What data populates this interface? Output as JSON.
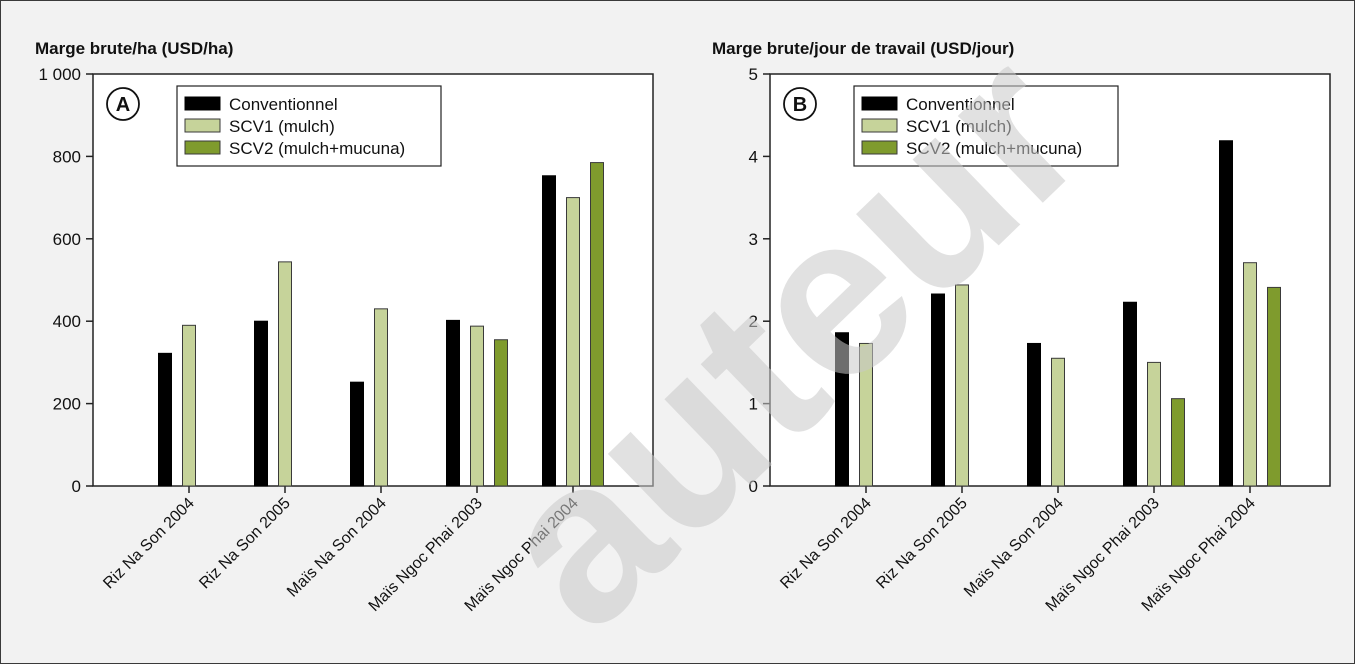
{
  "colors": {
    "conventionnel": "#000000",
    "scv1": "#c6d39a",
    "scv2": "#7f9b2d",
    "watermark": "#c9c9c9"
  },
  "watermark_text": "auteur",
  "chart_data": [
    {
      "type": "bar",
      "panel_label": "A",
      "title": "Marge brute/ha (USD/ha)",
      "xlabel": "",
      "ylabel": "",
      "ylim": [
        0,
        1000
      ],
      "y_ticks": [
        0,
        200,
        400,
        600,
        800,
        1000
      ],
      "y_tick_labels": [
        "0",
        "200",
        "400",
        "600",
        "800",
        "1 000"
      ],
      "categories": [
        "Riz Na Son 2004",
        "Riz Na Son 2005",
        "Maïs Na Son 2004",
        "Maïs Ngoc Phai 2003",
        "Maïs Ngoc Phai 2004"
      ],
      "series": [
        {
          "name": "Conventionnel",
          "values": [
            322,
            400,
            252,
            402,
            753
          ]
        },
        {
          "name": "SCV1 (mulch)",
          "values": [
            390,
            544,
            430,
            388,
            700
          ]
        },
        {
          "name": "SCV2 (mulch+mucuna)",
          "values": [
            null,
            null,
            null,
            355,
            785
          ]
        }
      ],
      "legend": "top-left",
      "grid": false
    },
    {
      "type": "bar",
      "panel_label": "B",
      "title": "Marge brute/jour de travail (USD/jour)",
      "xlabel": "",
      "ylabel": "",
      "ylim": [
        0,
        5
      ],
      "y_ticks": [
        0,
        1,
        2,
        3,
        4,
        5
      ],
      "y_tick_labels": [
        "0",
        "1",
        "2",
        "3",
        "4",
        "5"
      ],
      "categories": [
        "Riz Na Son 2004",
        "Riz Na Son 2005",
        "Maïs Na Son 2004",
        "Maïs Ngoc Phai 2003",
        "Maïs Ngoc Phai 2004"
      ],
      "series": [
        {
          "name": "Conventionnel",
          "values": [
            1.86,
            2.33,
            1.73,
            2.23,
            4.19
          ]
        },
        {
          "name": "SCV1 (mulch)",
          "values": [
            1.73,
            2.44,
            1.55,
            1.5,
            2.71
          ]
        },
        {
          "name": "SCV2 (mulch+mucuna)",
          "values": [
            null,
            null,
            null,
            1.06,
            2.41
          ]
        }
      ],
      "legend": "top-left",
      "grid": false
    }
  ]
}
